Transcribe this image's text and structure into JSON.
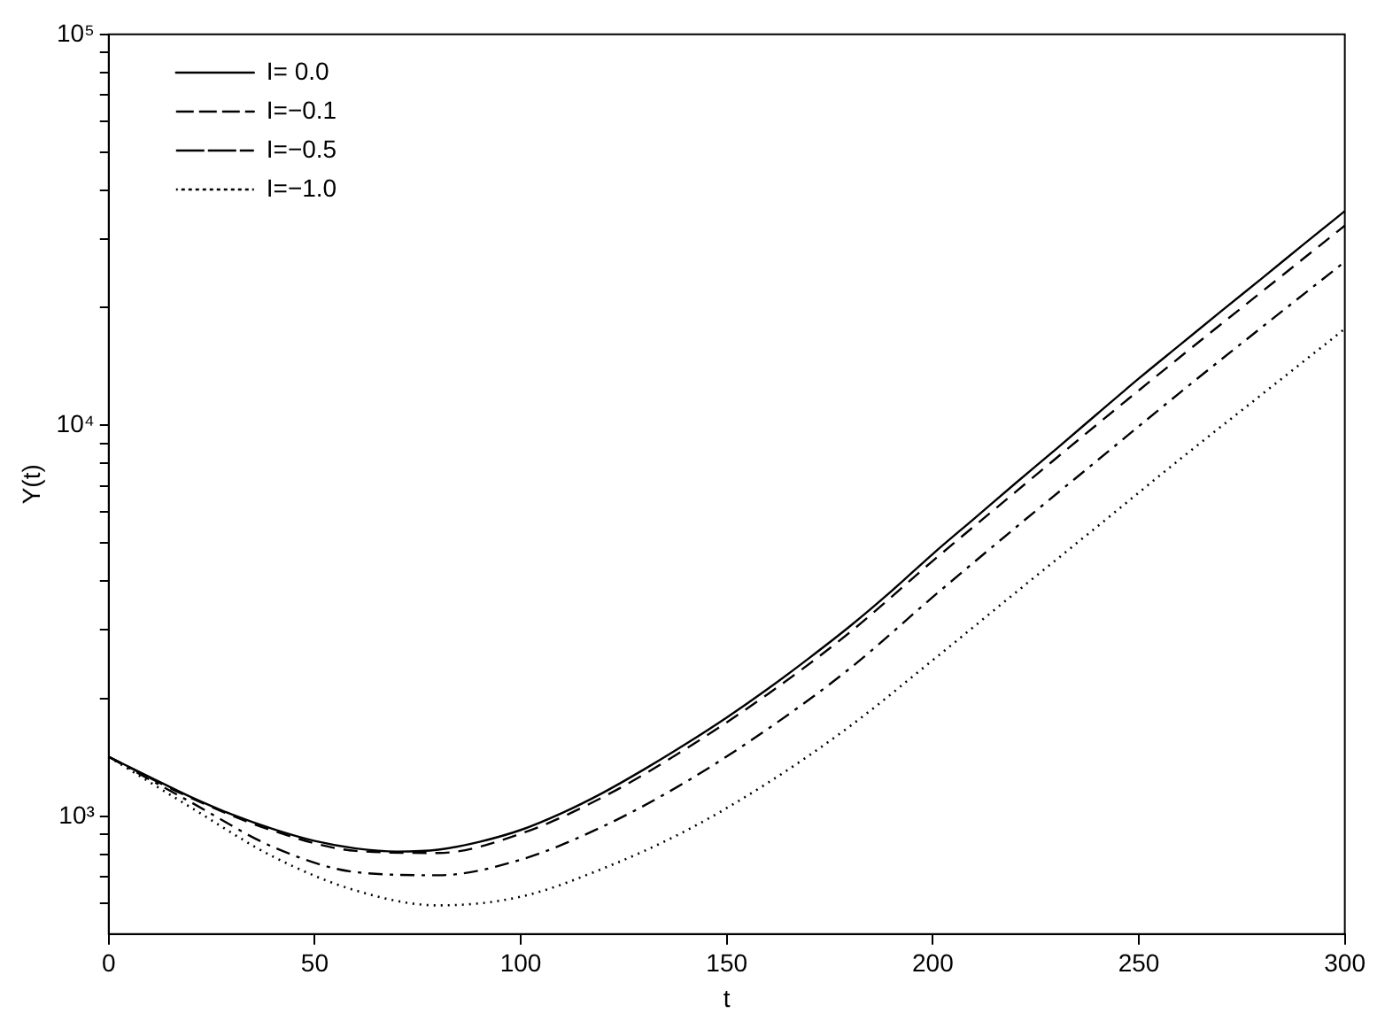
{
  "chart_data": {
    "type": "line",
    "xlabel": "t",
    "ylabel": "Y(t)",
    "log": "y",
    "grid": false,
    "legend": "top left",
    "marker": "none",
    "xlim": [
      0,
      300
    ],
    "xticks": [
      0,
      50,
      100,
      150,
      200,
      250,
      300
    ],
    "ylim": [
      500,
      100000
    ],
    "yticks": [
      {
        "value": 600,
        "label": null
      },
      {
        "value": 700,
        "label": null
      },
      {
        "value": 800,
        "label": null
      },
      {
        "value": 900,
        "label": null
      },
      {
        "value": 1000,
        "label": "10³"
      },
      {
        "value": 2000,
        "label": null
      },
      {
        "value": 3000,
        "label": null
      },
      {
        "value": 4000,
        "label": null
      },
      {
        "value": 5000,
        "label": null
      },
      {
        "value": 6000,
        "label": null
      },
      {
        "value": 7000,
        "label": null
      },
      {
        "value": 8000,
        "label": null
      },
      {
        "value": 9000,
        "label": null
      },
      {
        "value": 10000,
        "label": "10⁴"
      },
      {
        "value": 20000,
        "label": null
      },
      {
        "value": 30000,
        "label": null
      },
      {
        "value": 40000,
        "label": null
      },
      {
        "value": 50000,
        "label": null
      },
      {
        "value": 60000,
        "label": null
      },
      {
        "value": 70000,
        "label": null
      },
      {
        "value": 80000,
        "label": null
      },
      {
        "value": 90000,
        "label": null
      },
      {
        "value": 100000,
        "label": "10⁵"
      }
    ],
    "x": [
      0,
      20,
      40,
      60,
      80,
      100,
      120,
      140,
      160,
      180,
      200,
      220,
      240,
      260,
      280,
      300
    ],
    "series": [
      {
        "name": "I= 0.0",
        "color": "#000000",
        "line_style": "solid",
        "x": [
          0,
          10,
          20,
          30,
          40,
          50,
          60,
          70,
          80,
          90,
          100,
          110,
          120,
          130,
          140,
          150,
          160,
          170,
          180,
          190,
          200,
          210,
          220,
          230,
          240,
          250,
          260,
          270,
          280,
          290,
          300
        ],
        "values": [
          1420,
          1260,
          1120,
          1010,
          927,
          865,
          828,
          813,
          822,
          861,
          923,
          1020,
          1150,
          1320,
          1530,
          1790,
          2120,
          2540,
          3070,
          3770,
          4690,
          5770,
          7100,
          8710,
          10720,
          13180,
          16070,
          19590,
          23820,
          29040,
          35320
        ]
      },
      {
        "name": "I=−0.1",
        "color": "#000000",
        "line_style": "dashed",
        "values": [
          1420,
          1114,
          918,
          816,
          806,
          903,
          1121,
          1487,
          2056,
          2963,
          4502,
          6745,
          10080,
          14950,
          22030,
          32420
        ]
      },
      {
        "name": "I=−0.5",
        "color": "#000000",
        "line_style": "dashdot",
        "values": [
          1420,
          1086,
          834,
          720,
          707,
          775,
          943,
          1224,
          1675,
          2395,
          3639,
          5467,
          8147,
          12130,
          17870,
          26210
        ]
      },
      {
        "name": "I=−1.0",
        "color": "#000000",
        "line_style": "dotted",
        "values": [
          1420,
          1053,
          788,
          646,
          592,
          623,
          736,
          918,
          1219,
          1704,
          2509,
          3728,
          5521,
          8196,
          12030,
          17660
        ]
      }
    ]
  }
}
